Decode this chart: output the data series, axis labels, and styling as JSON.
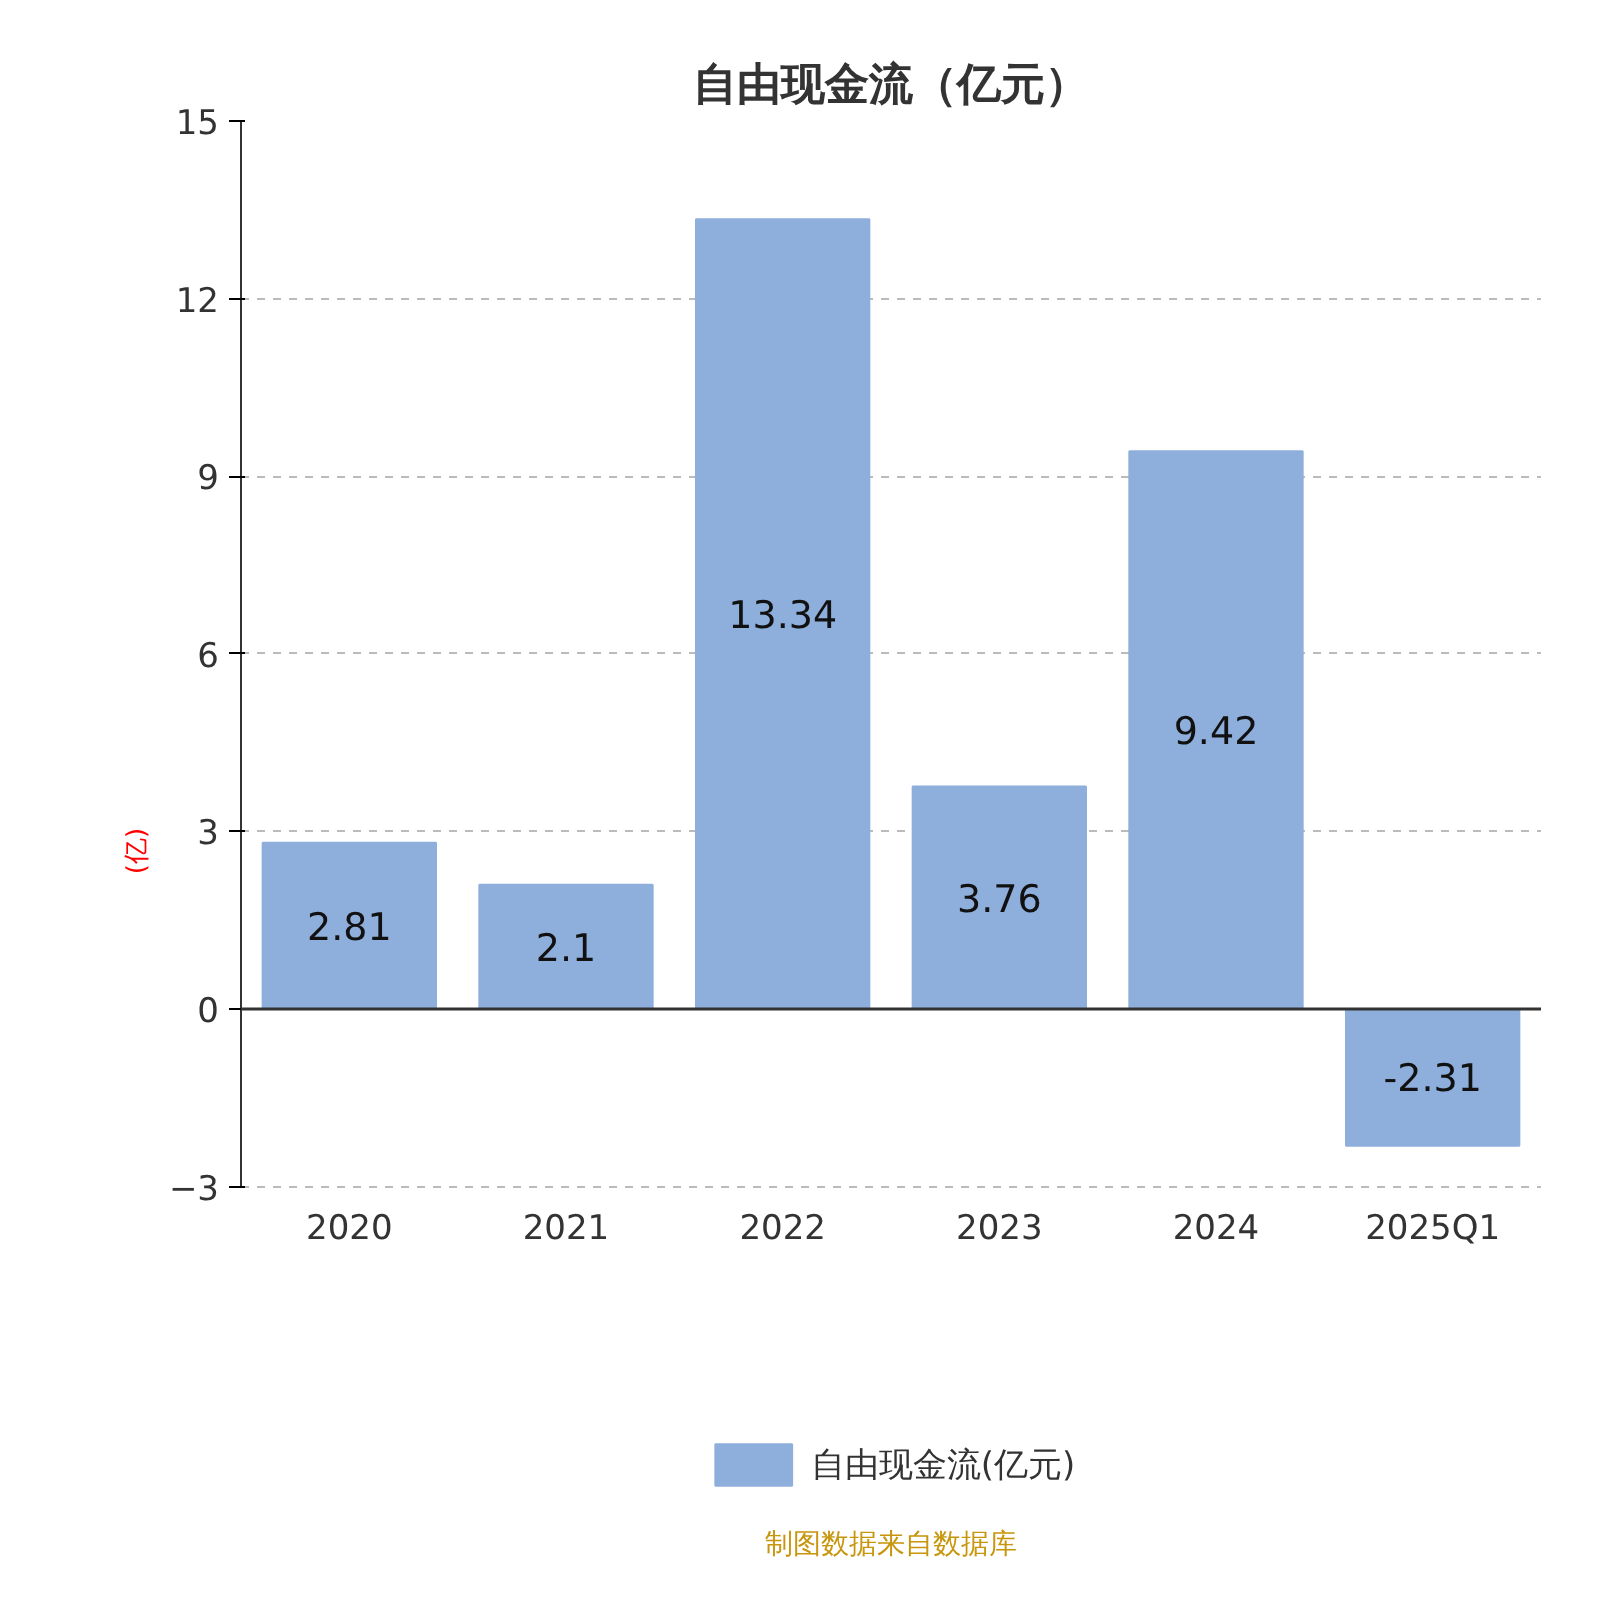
{
  "chart_data": {
    "type": "bar",
    "title": "自由现金流（亿元）",
    "ylabel": "(亿)",
    "categories": [
      "2020",
      "2021",
      "2022",
      "2023",
      "2024",
      "2025Q1"
    ],
    "series": [
      {
        "name": "自由现金流(亿元)",
        "color": "#8eaedb",
        "values": [
          2.81,
          2.1,
          13.34,
          3.76,
          9.42,
          -2.31
        ]
      }
    ],
    "ylim": [
      -3,
      15
    ],
    "yticks": [
      -3,
      0,
      3,
      6,
      9,
      12,
      15
    ],
    "grid": "y",
    "legend": "bottom",
    "data_labels": true,
    "annotations": [
      "制图数据来自数据库"
    ]
  }
}
